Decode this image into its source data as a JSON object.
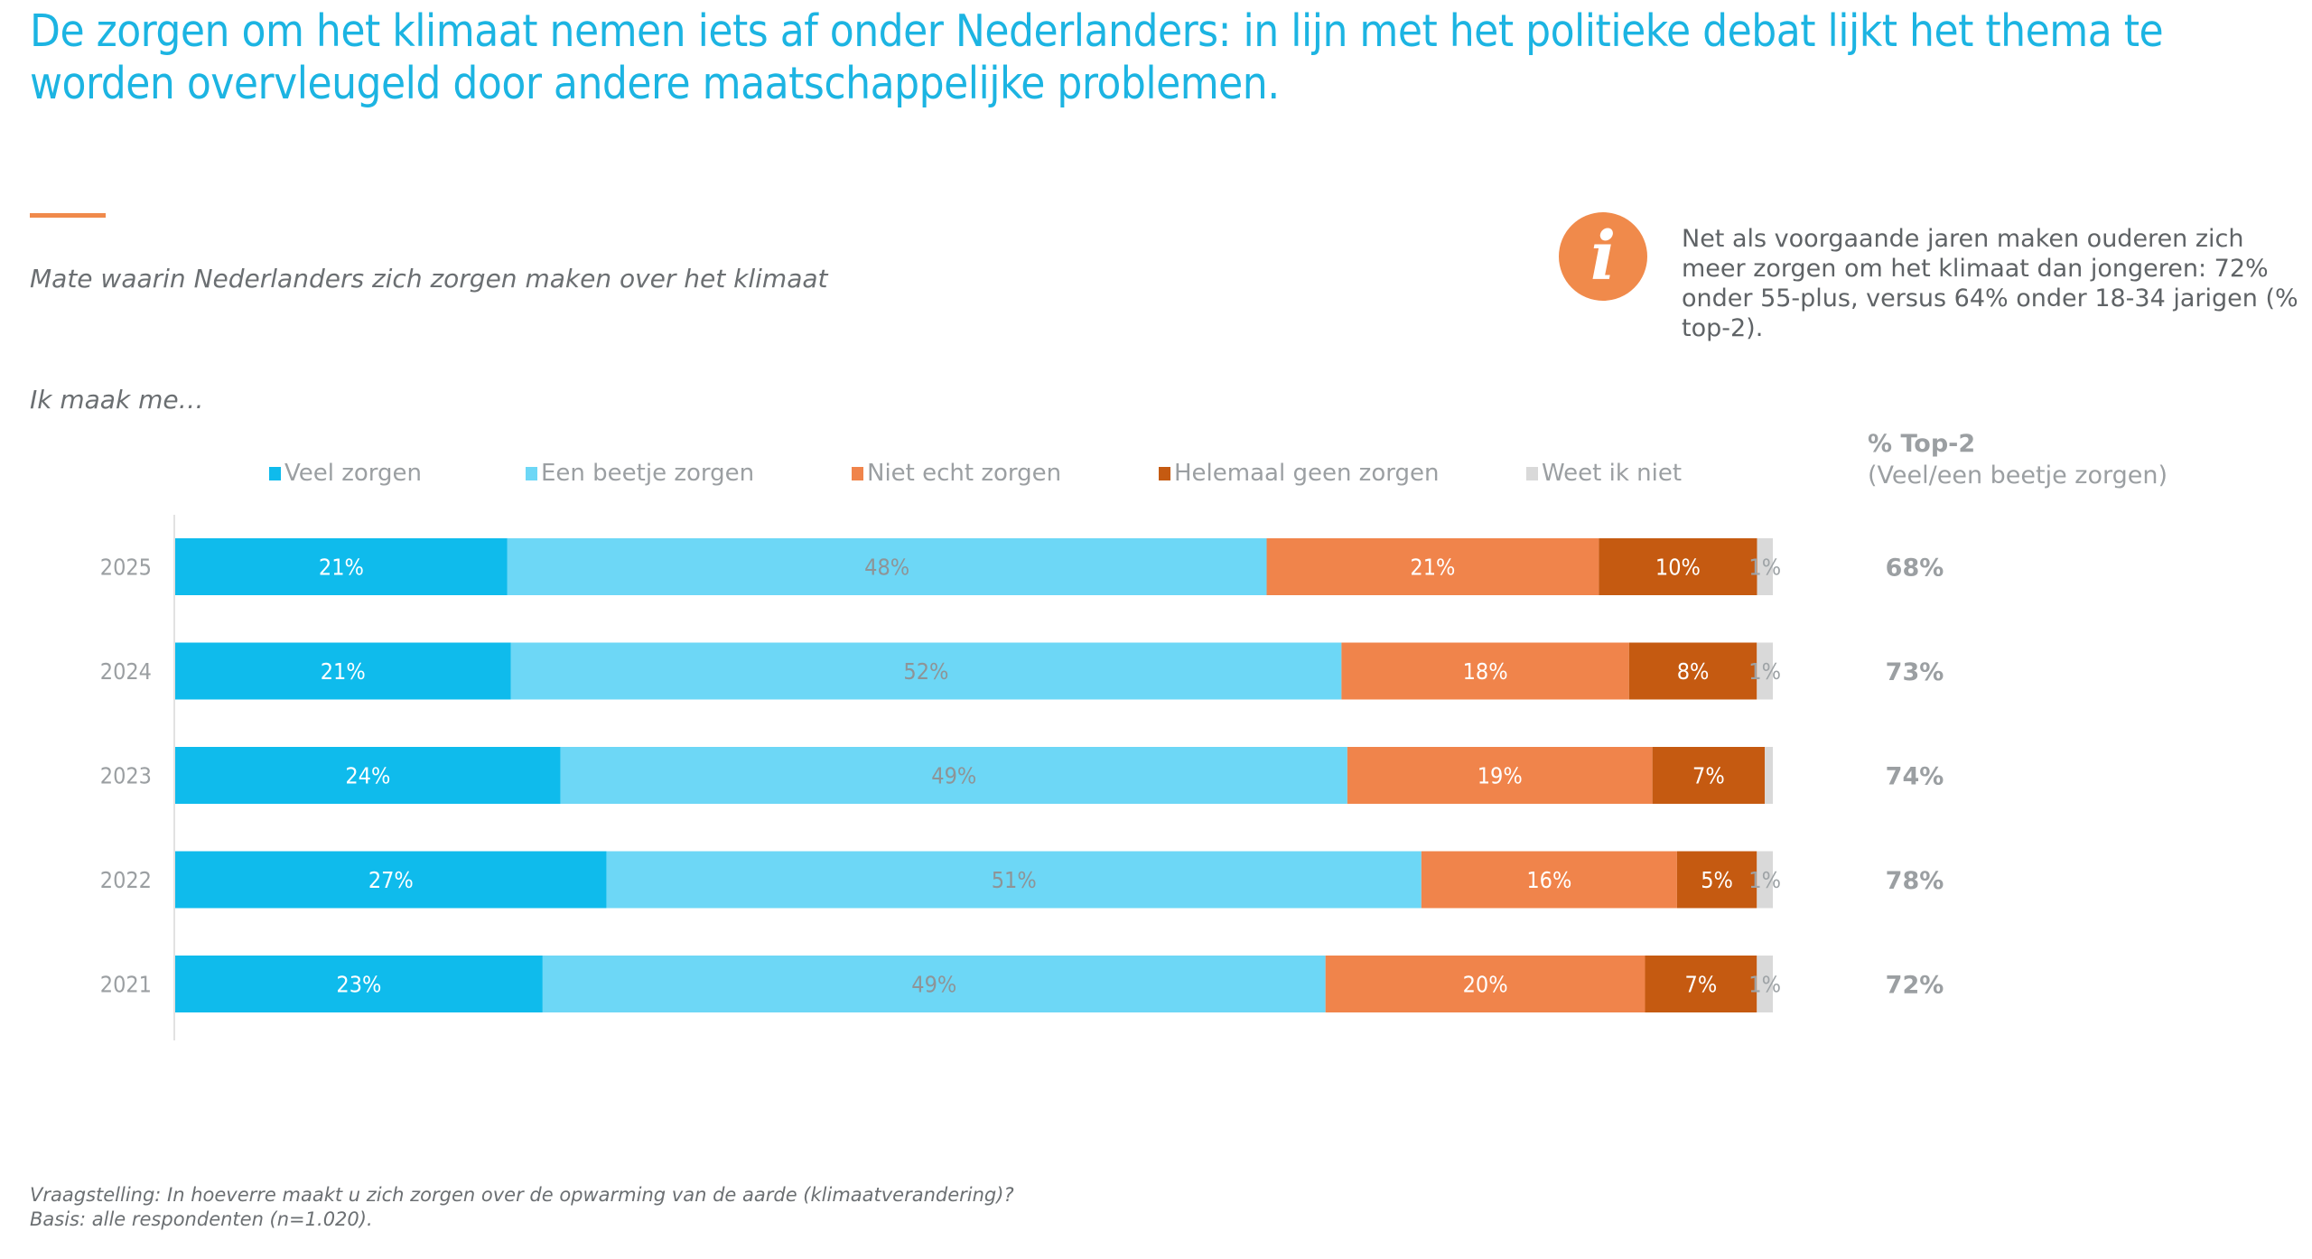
{
  "title": "De zorgen om het klimaat nemen iets af onder Nederlanders: in lijn met het politieke debat lijkt het thema te worden overvleugeld door andere maatschappelijke problemen.",
  "subtitle": "Mate waarin Nederlanders zich zorgen maken over het klimaat",
  "question_lead": "Ik maak me…",
  "info": {
    "icon": "info-icon",
    "text": "Net als voorgaande jaren maken ouderen zich meer zorgen om het klimaat dan jongeren: 72% onder 55-plus, versus 64% onder 18-34 jarigen (% top-2)."
  },
  "top2_header": {
    "title": "% Top-2",
    "subtitle": "(Veel/een beetje zorgen)"
  },
  "footnote": {
    "question": "Vraagstelling: In hoeverre maakt u zich zorgen over de opwarming van de aarde (klimaatverandering)?",
    "base": "Basis: alle respondenten (n=1.020)."
  },
  "chart_data": {
    "type": "bar",
    "orientation": "horizontal",
    "stacked": true,
    "percent_stacked": true,
    "title": "Mate waarin Nederlanders zich zorgen maken over het klimaat",
    "xlabel": "",
    "ylabel": "",
    "xlim": [
      0,
      100
    ],
    "grid": false,
    "legend_position": "top",
    "categories": [
      "2025",
      "2024",
      "2023",
      "2022",
      "2021"
    ],
    "series": [
      {
        "name": "Veel zorgen",
        "color": "#0fbbec",
        "label_color": "#ffffff",
        "values": [
          21,
          21,
          24,
          27,
          23
        ],
        "labels": [
          "21%",
          "21%",
          "24%",
          "27%",
          "23%"
        ]
      },
      {
        "name": "Een beetje zorgen",
        "color": "#6dd7f6",
        "label_color": "#8e9497",
        "values": [
          48,
          52,
          49,
          51,
          49
        ],
        "labels": [
          "48%",
          "52%",
          "49%",
          "51%",
          "49%"
        ]
      },
      {
        "name": "Niet echt zorgen",
        "color": "#f0844b",
        "label_color": "#ffffff",
        "values": [
          21,
          18,
          19,
          16,
          20
        ],
        "labels": [
          "21%",
          "18%",
          "19%",
          "16%",
          "20%"
        ]
      },
      {
        "name": "Helemaal geen zorgen",
        "color": "#c55a11",
        "label_color": "#ffffff",
        "values": [
          10,
          8,
          7,
          5,
          7
        ],
        "labels": [
          "10%",
          "8%",
          "7%",
          "5%",
          "7%"
        ]
      },
      {
        "name": "Weet ik niet",
        "color": "#d9d9d9",
        "label_color": "#9ea3a6",
        "values": [
          1,
          1,
          0.5,
          1,
          1
        ],
        "labels": [
          "1%",
          "1%",
          "",
          "1%",
          "1%"
        ]
      }
    ],
    "top2": {
      "header": "% Top-2",
      "subheader": "(Veel/een beetje zorgen)",
      "values": [
        68,
        73,
        74,
        78,
        72
      ],
      "labels": [
        "68%",
        "73%",
        "74%",
        "78%",
        "72%"
      ]
    }
  }
}
